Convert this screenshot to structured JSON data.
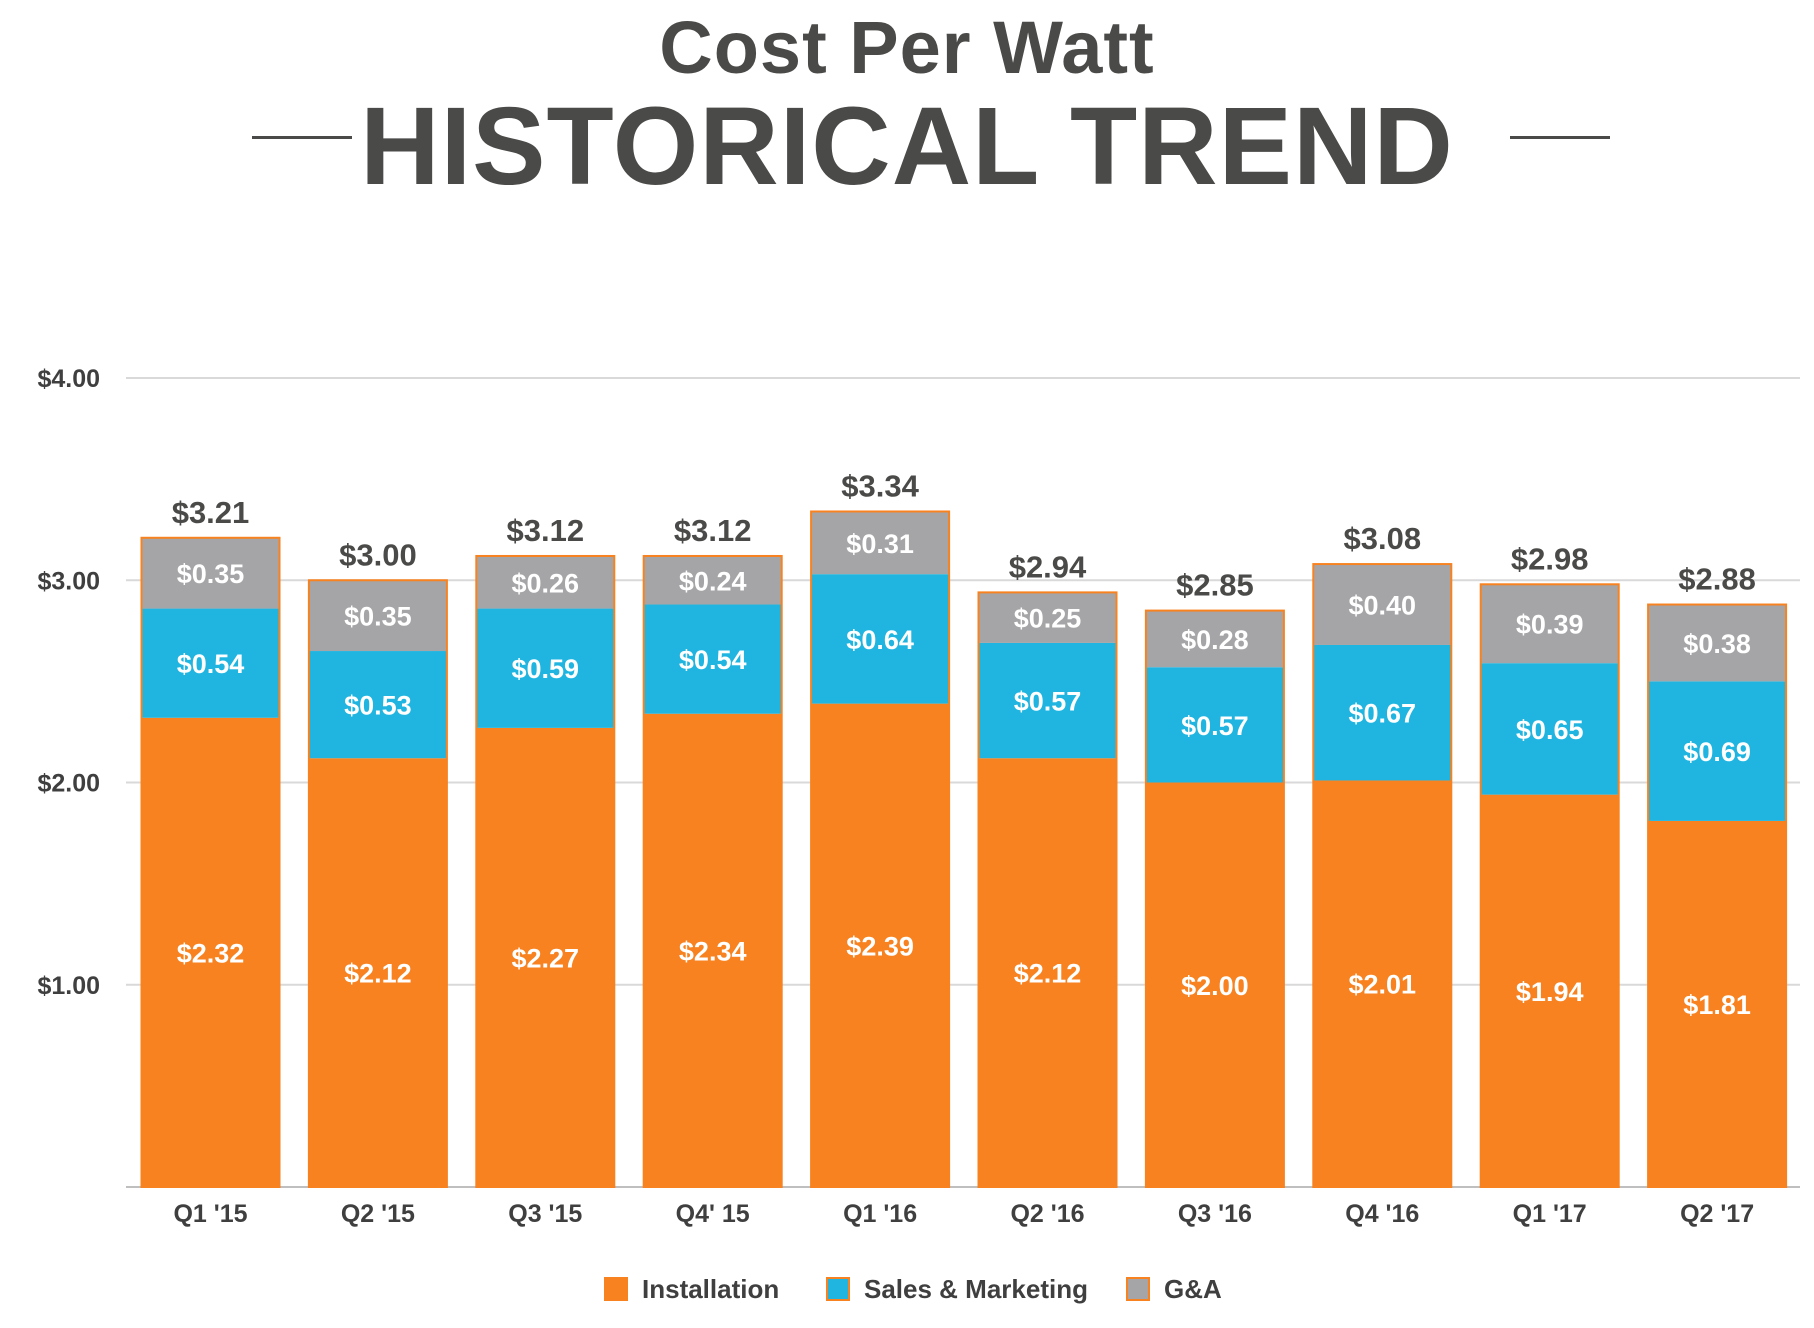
{
  "title": {
    "line1": "Cost Per Watt",
    "line2": "HISTORICAL TREND"
  },
  "colors": {
    "installation": "#f7821f",
    "sales_marketing": "#1fb5e0",
    "ga": "#a5a5a7",
    "title": "#4a4a48",
    "axis_text": "#3f3f3f",
    "grid": "#d9d9d9"
  },
  "chart_data": {
    "type": "bar",
    "stacked": true,
    "categories": [
      "Q1 '15",
      "Q2 '15",
      "Q3 '15",
      "Q4' 15",
      "Q1 '16",
      "Q2 '16",
      "Q3 '16",
      "Q4 '16",
      "Q1 '17",
      "Q2 '17"
    ],
    "series": [
      {
        "name": "Installation",
        "color": "#f7821f",
        "values": [
          2.32,
          2.12,
          2.27,
          2.34,
          2.39,
          2.12,
          2.0,
          2.01,
          1.94,
          1.81
        ],
        "labels": [
          "$2.32",
          "$2.12",
          "$2.27",
          "$2.34",
          "$2.39",
          "$2.12",
          "$2.00",
          "$2.01",
          "$1.94",
          "$1.81"
        ]
      },
      {
        "name": "Sales & Marketing",
        "color": "#1fb5e0",
        "values": [
          0.54,
          0.53,
          0.59,
          0.54,
          0.64,
          0.57,
          0.57,
          0.67,
          0.65,
          0.69
        ],
        "labels": [
          "$0.54",
          "$0.53",
          "$0.59",
          "$0.54",
          "$0.64",
          "$0.57",
          "$0.57",
          "$0.67",
          "$0.65",
          "$0.69"
        ]
      },
      {
        "name": "G&A",
        "color": "#a5a5a7",
        "values": [
          0.35,
          0.35,
          0.26,
          0.24,
          0.31,
          0.25,
          0.28,
          0.4,
          0.39,
          0.38
        ],
        "labels": [
          "$0.35",
          "$0.35",
          "$0.26",
          "$0.24",
          "$0.31",
          "$0.25",
          "$0.28",
          "$0.40",
          "$0.39",
          "$0.38"
        ]
      }
    ],
    "totals": [
      3.21,
      3.0,
      3.12,
      3.12,
      3.34,
      2.94,
      2.85,
      3.08,
      2.98,
      2.88
    ],
    "total_labels": [
      "$3.21",
      "$3.00",
      "$3.12",
      "$3.12",
      "$3.34",
      "$2.94",
      "$2.85",
      "$3.08",
      "$2.98",
      "$2.88"
    ],
    "ylim": [
      0,
      4
    ],
    "yticks": [
      1,
      2,
      3,
      4
    ],
    "ytick_labels": [
      "$1.00",
      "$2.00",
      "$3.00",
      "$4.00"
    ],
    "grid": true,
    "legend": {
      "position": "bottom",
      "entries": [
        "Installation",
        "Sales & Marketing",
        "G&A"
      ]
    }
  }
}
